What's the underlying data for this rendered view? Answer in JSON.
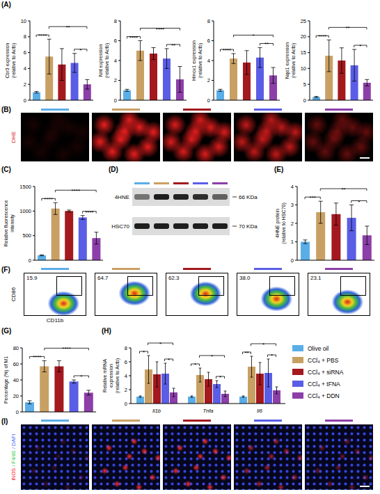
{
  "groups": [
    {
      "name": "Olive oil",
      "color": "#5aaee8"
    },
    {
      "name": "CCl₄ + PBS",
      "color": "#c9a063"
    },
    {
      "name": "CCl₄ + siRNA",
      "color": "#a3191e"
    },
    {
      "name": "CCl₄ + tFNA",
      "color": "#5a5ee6"
    },
    {
      "name": "CCl₄ + DDN",
      "color": "#8c3fa8"
    }
  ],
  "chart_data": [
    {
      "type": "bar",
      "panel_label": "(A)",
      "y_label": "Cbr3 expression (relative to Actb)",
      "categories": [
        "Olive oil",
        "CCl₄ + PBS",
        "CCl₄ + siRNA",
        "CCl₄ + tFNA",
        "CCl₄ + DDN"
      ],
      "colors": [
        "#5aaee8",
        "#c9a063",
        "#a3191e",
        "#5a5ee6",
        "#8c3fa8"
      ],
      "values": [
        1,
        5.5,
        4.5,
        4.7,
        2
      ],
      "errors": [
        0.1,
        2.2,
        2,
        1.2,
        0.6
      ],
      "ylim": [
        0,
        10
      ],
      "yticks": [
        0,
        2,
        4,
        6,
        8,
        10
      ],
      "tick_labels": "y",
      "significance": [
        {
          "groups": [
            "Olive oil",
            "CCl₄ + PBS"
          ],
          "label": "****"
        },
        {
          "groups": [
            "CCl₄ + PBS",
            "CCl₄ + DDN"
          ],
          "label": "**"
        },
        {
          "groups": [
            "CCl₄ + tFNA",
            "CCl₄ + DDN"
          ],
          "label": "*"
        }
      ]
    },
    {
      "type": "bar",
      "y_label": "Nnt expression (relative to Actb)",
      "categories": [
        "Olive oil",
        "CCl₄ + PBS",
        "CCl₄ + siRNA",
        "CCl₄ + tFNA",
        "CCl₄ + DDN"
      ],
      "colors": [
        "#5aaee8",
        "#c9a063",
        "#a3191e",
        "#5a5ee6",
        "#8c3fa8"
      ],
      "values": [
        1,
        5,
        4.7,
        4.2,
        2.1
      ],
      "errors": [
        0.1,
        1,
        0.6,
        1,
        1.3
      ],
      "ylim": [
        0,
        8
      ],
      "yticks": [
        0,
        2,
        4,
        6,
        8
      ],
      "tick_labels": "y",
      "significance": [
        {
          "groups": [
            "Olive oil",
            "CCl₄ + PBS"
          ],
          "label": "****"
        },
        {
          "groups": [
            "CCl₄ + PBS",
            "CCl₄ + DDN"
          ],
          "label": "****"
        },
        {
          "groups": [
            "CCl₄ + tFNA",
            "CCl₄ + DDN"
          ],
          "label": "**"
        }
      ]
    },
    {
      "type": "bar",
      "y_label": "Hmox1 expression (relative to Actb)",
      "categories": [
        "Olive oil",
        "CCl₄ + PBS",
        "CCl₄ + siRNA",
        "CCl₄ + tFNA",
        "CCl₄ + DDN"
      ],
      "colors": [
        "#5aaee8",
        "#c9a063",
        "#a3191e",
        "#5a5ee6",
        "#8c3fa8"
      ],
      "values": [
        1,
        4.2,
        3.8,
        4.3,
        2.5
      ],
      "errors": [
        0.1,
        0.5,
        1.2,
        1,
        0.8
      ],
      "ylim": [
        0,
        8
      ],
      "yticks": [
        0,
        2,
        4,
        6,
        8
      ],
      "tick_labels": "y",
      "significance": [
        {
          "groups": [
            "Olive oil",
            "CCl₄ + PBS"
          ],
          "label": "****"
        },
        {
          "groups": [
            "CCl₄ + PBS",
            "CCl₄ + DDN"
          ],
          "label": "*"
        },
        {
          "groups": [
            "CCl₄ + tFNA",
            "CCl₄ + DDN"
          ],
          "label": "**"
        }
      ]
    },
    {
      "type": "bar",
      "y_label": "Nqo1 expression (relative to Actb)",
      "categories": [
        "Olive oil",
        "CCl₄ + PBS",
        "CCl₄ + siRNA",
        "CCl₄ + tFNA",
        "CCl₄ + DDN"
      ],
      "colors": [
        "#5aaee8",
        "#c9a063",
        "#a3191e",
        "#5a5ee6",
        "#8c3fa8"
      ],
      "values": [
        1,
        14,
        12.5,
        11,
        5.5
      ],
      "errors": [
        0.2,
        5,
        4,
        5,
        1
      ],
      "ylim": [
        0,
        25
      ],
      "yticks": [
        0,
        5,
        10,
        15,
        20,
        25
      ],
      "tick_labels": "y",
      "significance": [
        {
          "groups": [
            "Olive oil",
            "CCl₄ + PBS"
          ],
          "label": "****"
        },
        {
          "groups": [
            "CCl₄ + PBS",
            "CCl₄ + DDN"
          ],
          "label": "**"
        },
        {
          "groups": [
            "CCl₄ + tFNA",
            "CCl₄ + DDN"
          ],
          "label": "*"
        }
      ]
    },
    {
      "type": "bar",
      "panel_label": "(C)",
      "y_label": "Relative fluorescence intensity",
      "categories": [
        "Olive oil",
        "CCl₄ + PBS",
        "CCl₄ + siRNA",
        "CCl₄ + tFNA",
        "CCl₄ + DDN"
      ],
      "colors": [
        "#5aaee8",
        "#c9a063",
        "#a3191e",
        "#5a5ee6",
        "#8c3fa8"
      ],
      "values": [
        100,
        1050,
        1000,
        870,
        450
      ],
      "errors": [
        10,
        120,
        20,
        40,
        120
      ],
      "ylim": [
        0,
        1500
      ],
      "yticks": [
        0,
        500,
        1000,
        1500
      ],
      "tick_labels": "y",
      "significance": [
        {
          "groups": [
            "Olive oil",
            "CCl₄ + PBS"
          ],
          "label": "****"
        },
        {
          "groups": [
            "CCl₄ + PBS",
            "CCl₄ + DDN"
          ],
          "label": "****"
        },
        {
          "groups": [
            "CCl₄ + tFNA",
            "CCl₄ + DDN"
          ],
          "label": "****"
        }
      ]
    },
    {
      "type": "bar",
      "panel_label": "(E)",
      "y_label": "4HNE protein (relative to HSC70)",
      "categories": [
        "Olive oil",
        "CCl₄ + PBS",
        "CCl₄ + siRNA",
        "CCl₄ + tFNA",
        "CCl₄ + DDN"
      ],
      "colors": [
        "#5aaee8",
        "#c9a063",
        "#a3191e",
        "#5a5ee6",
        "#8c3fa8"
      ],
      "values": [
        1,
        2.6,
        2.5,
        2.3,
        1.35
      ],
      "errors": [
        0.1,
        0.6,
        0.6,
        0.7,
        0.5
      ],
      "ylim": [
        0,
        4
      ],
      "yticks": [
        0,
        1,
        2,
        3,
        4
      ],
      "tick_labels": "y",
      "significance": [
        {
          "groups": [
            "Olive oil",
            "CCl₄ + PBS"
          ],
          "label": "***"
        },
        {
          "groups": [
            "CCl₄ + PBS",
            "CCl₄ + DDN"
          ],
          "label": "**"
        },
        {
          "groups": [
            "CCl₄ + tFNA",
            "CCl₄ + DDN"
          ],
          "label": "*"
        }
      ]
    },
    {
      "type": "bar",
      "panel_label": "(G)",
      "y_label": "Percentage (%) of M1",
      "categories": [
        "Olive oil",
        "CCl₄ + PBS",
        "CCl₄ + siRNA",
        "CCl₄ + tFNA",
        "CCl₄ + DDN"
      ],
      "colors": [
        "#5aaee8",
        "#c9a063",
        "#a3191e",
        "#5a5ee6",
        "#8c3fa8"
      ],
      "values": [
        12,
        57,
        57,
        38,
        24
      ],
      "errors": [
        2,
        7,
        7,
        2,
        3
      ],
      "ylim": [
        0,
        80
      ],
      "yticks": [
        0,
        20,
        40,
        60,
        80
      ],
      "tick_labels": "y",
      "significance": [
        {
          "groups": [
            "Olive oil",
            "CCl₄ + PBS"
          ],
          "label": "****"
        },
        {
          "groups": [
            "CCl₄ + PBS",
            "CCl₄ + DDN"
          ],
          "label": "****"
        },
        {
          "groups": [
            "CCl₄ + tFNA",
            "CCl₄ + DDN"
          ],
          "label": "*"
        }
      ]
    },
    {
      "type": "bar",
      "panel_label": "(H)",
      "y_label": "Relative mRNA expression (relative to Actb)",
      "categories": [
        "Il1b",
        "Tnfa",
        "Il6"
      ],
      "series": [
        {
          "name": "Olive oil",
          "color": "#5aaee8",
          "values": [
            1,
            1,
            1
          ],
          "errors": [
            0.1,
            0.1,
            0.1
          ]
        },
        {
          "name": "CCl₄ + PBS",
          "color": "#c9a063",
          "values": [
            4.9,
            4.1,
            5.3
          ],
          "errors": [
            2,
            1,
            1.5
          ]
        },
        {
          "name": "CCl₄ + siRNA",
          "color": "#a3191e",
          "values": [
            4.2,
            3.5,
            4.3
          ],
          "errors": [
            1.8,
            1,
            1.6
          ]
        },
        {
          "name": "CCl₄ + tFNA",
          "color": "#5a5ee6",
          "values": [
            4.3,
            2.8,
            4.4
          ],
          "errors": [
            1.5,
            0.5,
            2
          ]
        },
        {
          "name": "CCl₄ + DDN",
          "color": "#8c3fa8",
          "values": [
            1.6,
            1.4,
            1.9
          ],
          "errors": [
            0.6,
            0.4,
            0.5
          ]
        }
      ],
      "ylim": [
        0,
        8
      ],
      "yticks": [
        0,
        2,
        4,
        6,
        8
      ],
      "legend": "right",
      "significance": [
        {
          "category": "Il1b",
          "groups": [
            "Olive oil",
            "CCl₄ + PBS"
          ],
          "label": "*"
        },
        {
          "category": "Il1b",
          "groups": [
            "CCl₄ + PBS",
            "CCl₄ + DDN"
          ],
          "label": "*"
        },
        {
          "category": "Il1b",
          "groups": [
            "CCl₄ + tFNA",
            "CCl₄ + DDN"
          ],
          "label": "*"
        },
        {
          "category": "Tnfa",
          "groups": [
            "Olive oil",
            "CCl₄ + PBS"
          ],
          "label": "*"
        },
        {
          "category": "Tnfa",
          "groups": [
            "CCl₄ + PBS",
            "CCl₄ + DDN"
          ],
          "label": "*"
        },
        {
          "category": "Tnfa",
          "groups": [
            "CCl₄ + tFNA",
            "CCl₄ + DDN"
          ],
          "label": "*"
        },
        {
          "category": "Il6",
          "groups": [
            "Olive oil",
            "CCl₄ + PBS"
          ],
          "label": "**"
        },
        {
          "category": "Il6",
          "groups": [
            "CCl₄ + PBS",
            "CCl₄ + DDN"
          ],
          "label": "*"
        },
        {
          "category": "Il6",
          "groups": [
            "CCl₄ + tFNA",
            "CCl₄ + DDN"
          ],
          "label": "*"
        }
      ]
    }
  ],
  "images": {
    "dhe": {
      "panel_label": "(B)",
      "label": "DHE"
    },
    "western_blot": {
      "panel_label": "(D)",
      "bands": [
        {
          "label": "4HNE",
          "size": "66 KDa"
        },
        {
          "label": "HSC70",
          "size": "70 KDa"
        }
      ]
    },
    "flow_cytometry": {
      "panel_label": "(F)",
      "x_label": "CD11b",
      "y_label": "CD86",
      "values": [
        15.9,
        64.7,
        62.3,
        38,
        23.1
      ],
      "value_labels": [
        "15.9",
        "64.7",
        "62.3",
        "38.0",
        "23.1"
      ]
    },
    "immunofluorescence": {
      "panel_label": "(I)",
      "label_parts": [
        "iNOS",
        " / F4/80",
        " / DAPI"
      ]
    }
  }
}
